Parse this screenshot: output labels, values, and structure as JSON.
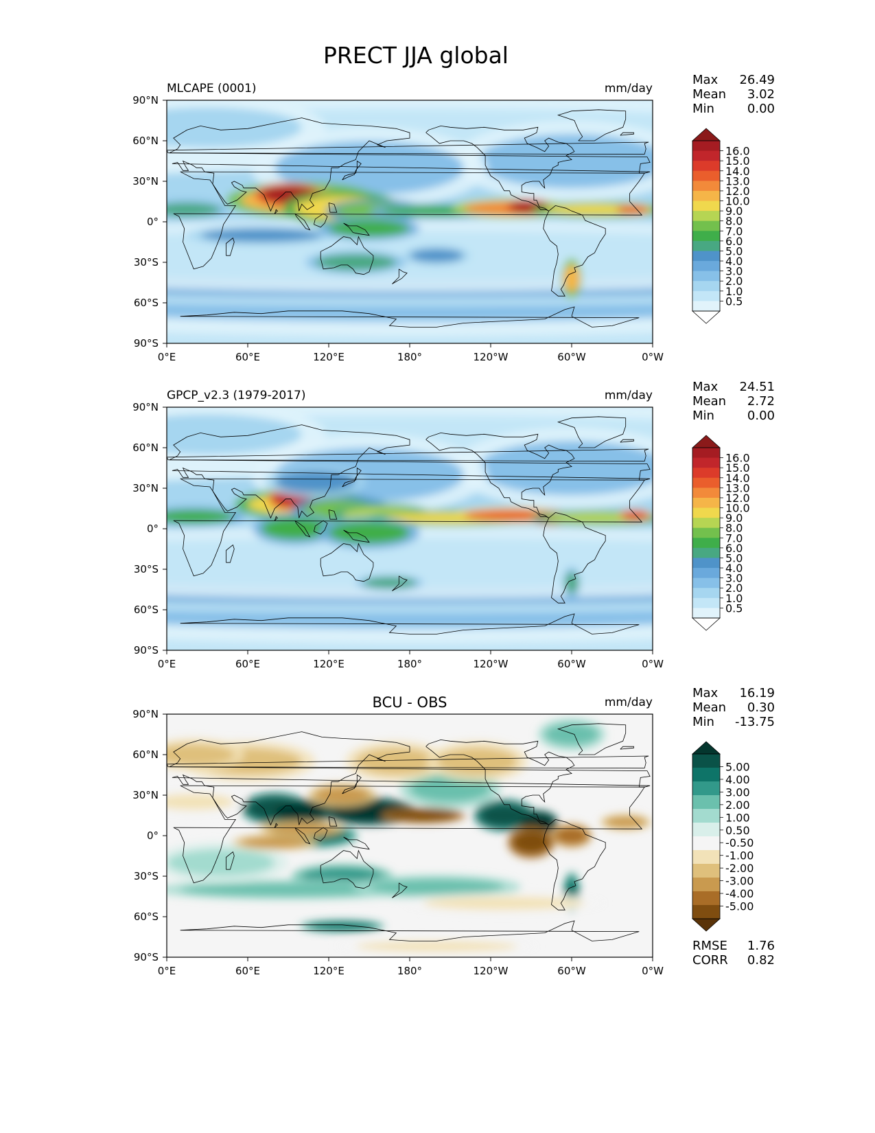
{
  "title": "PRECT JJA global",
  "lon_ticks": [
    "0°E",
    "60°E",
    "120°E",
    "180°",
    "120°W",
    "60°W",
    "0°W"
  ],
  "lat_ticks": [
    "90°N",
    "60°N",
    "30°N",
    "0°",
    "30°S",
    "60°S",
    "90°S"
  ],
  "colors": {
    "seq": [
      "#ffffff",
      "#e1f3fb",
      "#c3e6f7",
      "#a6d6f0",
      "#87c0e8",
      "#6aa9dc",
      "#4f93c9",
      "#48a882",
      "#3fae4a",
      "#73c04d",
      "#b6d553",
      "#f0d84d",
      "#f5b548",
      "#f28a3a",
      "#ea5e2c",
      "#dc3b2a",
      "#c1262b",
      "#a51c22",
      "#8b1a1a"
    ],
    "div": [
      "#5a3308",
      "#7f4d10",
      "#a96d27",
      "#c99a4f",
      "#dfc07c",
      "#f2e2b8",
      "#f5f5f5",
      "#d9efea",
      "#a3dbcf",
      "#6bc0ad",
      "#32998a",
      "#0e7468",
      "#0a5248",
      "#04362e"
    ],
    "land": "#000000"
  },
  "panels": [
    {
      "left_title": "MLCAPE (0001)",
      "center_title": "",
      "units": "mm/day",
      "stats": [
        {
          "label": "Max",
          "value": "26.49"
        },
        {
          "label": "Mean",
          "value": "3.02"
        },
        {
          "label": "Min",
          "value": "0.00"
        }
      ],
      "levels": [
        "16.0",
        "15.0",
        "14.0",
        "13.0",
        "12.0",
        "10.0",
        "9.0",
        "8.0",
        "7.0",
        "6.0",
        "5.0",
        "4.0",
        "3.0",
        "2.0",
        "1.0",
        "0.5"
      ],
      "colorbar": "seq",
      "footer": []
    },
    {
      "left_title": "GPCP_v2.3 (1979-2017)",
      "center_title": "",
      "units": "mm/day",
      "stats": [
        {
          "label": "Max",
          "value": "24.51"
        },
        {
          "label": "Mean",
          "value": "2.72"
        },
        {
          "label": "Min",
          "value": "0.00"
        }
      ],
      "levels": [
        "16.0",
        "15.0",
        "14.0",
        "13.0",
        "12.0",
        "10.0",
        "9.0",
        "8.0",
        "7.0",
        "6.0",
        "5.0",
        "4.0",
        "3.0",
        "2.0",
        "1.0",
        "0.5"
      ],
      "colorbar": "seq",
      "footer": []
    },
    {
      "left_title": "",
      "center_title": "BCU - OBS",
      "units": "mm/day",
      "stats": [
        {
          "label": "Max",
          "value": "16.19"
        },
        {
          "label": "Mean",
          "value": "0.30"
        },
        {
          "label": "Min",
          "value": "-13.75"
        }
      ],
      "levels": [
        "5.00",
        "4.00",
        "3.00",
        "2.00",
        "1.00",
        "0.50",
        "-0.50",
        "-1.00",
        "-2.00",
        "-3.00",
        "-4.00",
        "-5.00"
      ],
      "colorbar": "div",
      "footer": [
        {
          "label": "RMSE",
          "value": "1.76"
        },
        {
          "label": "CORR",
          "value": "0.82"
        }
      ]
    }
  ]
}
